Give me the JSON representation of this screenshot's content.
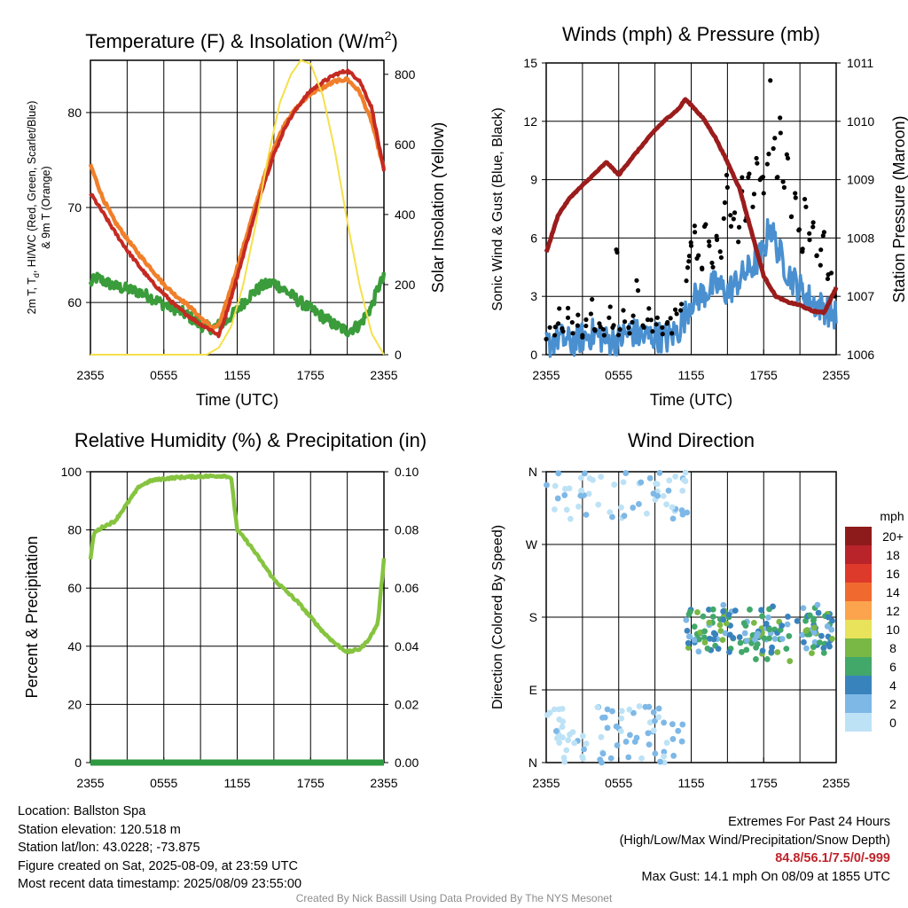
{
  "chart_data": [
    {
      "id": "temp",
      "type": "line",
      "title": "Temperature (F) & Insolation (W/m",
      "title_sup": "2",
      "title_close": ")",
      "xlabel": "Time (UTC)",
      "ylabel_left": [
        "2m T, T",
        "d",
        ", HI/WC (Red, Green, Scarlet/Blue)",
        "& 9m T (Orange)"
      ],
      "ylabel_right": "Solar Insolation (Yellow)",
      "x_ticks": [
        "2355",
        "0555",
        "1155",
        "1755",
        "2355"
      ],
      "ylim": [
        54.5,
        85.5
      ],
      "y_ticks": [
        60,
        70,
        80
      ],
      "y2lim": [
        0,
        840
      ],
      "y2_ticks": [
        0,
        200,
        400,
        600,
        800
      ],
      "grid": true,
      "series": [
        {
          "color": "#3a9c3a",
          "axis": "left",
          "points": [
            [
              0,
              62
            ],
            [
              0.5,
              62.6
            ],
            [
              1,
              62.3
            ],
            [
              2,
              61.7
            ],
            [
              3,
              61.4
            ],
            [
              4,
              61.1
            ],
            [
              5,
              60.5
            ],
            [
              6,
              59.8
            ],
            [
              7,
              59.3
            ],
            [
              8,
              58.6
            ],
            [
              9,
              57.6
            ],
            [
              10,
              57.3
            ],
            [
              11,
              57.9
            ],
            [
              12,
              59.2
            ],
            [
              13,
              60.7
            ],
            [
              14,
              61.7
            ],
            [
              15,
              62.1
            ],
            [
              16,
              61.2
            ],
            [
              17,
              60.2
            ],
            [
              18,
              59.3
            ],
            [
              19,
              58.5
            ],
            [
              20,
              57.6
            ],
            [
              21,
              57
            ],
            [
              22,
              57.6
            ],
            [
              23,
              59.6
            ],
            [
              23.5,
              61.5
            ],
            [
              24,
              62.6
            ]
          ]
        },
        {
          "color": "#f07f2b",
          "axis": "left",
          "points": [
            [
              0,
              74.5
            ],
            [
              1,
              71
            ],
            [
              2,
              68.5
            ],
            [
              3,
              66.7
            ],
            [
              4,
              65
            ],
            [
              5,
              63.5
            ],
            [
              6,
              61.9
            ],
            [
              7,
              60.7
            ],
            [
              8,
              59.7
            ],
            [
              9,
              58.4
            ],
            [
              10,
              57.3
            ],
            [
              10.5,
              57.6
            ],
            [
              11,
              59.5
            ],
            [
              12,
              63.7
            ],
            [
              13,
              68
            ],
            [
              14,
              72.4
            ],
            [
              15,
              76.3
            ],
            [
              16,
              79.1
            ],
            [
              17,
              80.7
            ],
            [
              18,
              82
            ],
            [
              19,
              82.6
            ],
            [
              20,
              83.3
            ],
            [
              21,
              83.5
            ],
            [
              22,
              82.2
            ],
            [
              23,
              79
            ],
            [
              24,
              74
            ]
          ]
        },
        {
          "color": "#c42a22",
          "axis": "left",
          "points": [
            [
              0,
              71.5
            ],
            [
              1,
              69.5
            ],
            [
              2,
              67.4
            ],
            [
              3,
              65.5
            ],
            [
              4,
              63.8
            ],
            [
              5,
              62.2
            ],
            [
              6,
              60.9
            ],
            [
              7,
              59.6
            ],
            [
              8,
              58.6
            ],
            [
              9,
              57.7
            ],
            [
              10,
              57
            ],
            [
              10.5,
              56.5
            ],
            [
              11,
              58.4
            ],
            [
              12,
              62.7
            ],
            [
              13,
              67.3
            ],
            [
              14,
              71.8
            ],
            [
              15,
              75.6
            ],
            [
              16,
              78.7
            ],
            [
              17,
              80.7
            ],
            [
              18,
              82.3
            ],
            [
              19,
              83.2
            ],
            [
              20,
              84
            ],
            [
              21,
              84.4
            ],
            [
              22,
              83.4
            ],
            [
              23,
              80.5
            ],
            [
              24,
              73.8
            ]
          ]
        },
        {
          "color": "#f5e04a",
          "axis": "right",
          "points": [
            [
              0,
              0
            ],
            [
              9.5,
              0
            ],
            [
              10.5,
              20
            ],
            [
              11.5,
              80
            ],
            [
              12.5,
              200
            ],
            [
              13.5,
              370
            ],
            [
              14.5,
              560
            ],
            [
              15.5,
              720
            ],
            [
              16.4,
              800
            ],
            [
              17.2,
              840
            ],
            [
              18,
              830
            ],
            [
              19,
              740
            ],
            [
              20,
              580
            ],
            [
              21,
              380
            ],
            [
              22,
              200
            ],
            [
              23,
              60
            ],
            [
              24,
              0
            ]
          ]
        }
      ]
    },
    {
      "id": "winds",
      "type": "line",
      "title": "Winds (mph) & Pressure (mb)",
      "xlabel": "Time (UTC)",
      "ylabel_left": "Sonic Wind & Gust (Blue, Black)",
      "ylabel_right": "Station Pressure (Maroon)",
      "x_ticks": [
        "2355",
        "0555",
        "1155",
        "1755",
        "2355"
      ],
      "ylim": [
        0,
        15
      ],
      "y_ticks": [
        0,
        3,
        6,
        9,
        12,
        15
      ],
      "y2lim": [
        1006,
        1011
      ],
      "y2_ticks": [
        1006,
        1007,
        1008,
        1009,
        1010,
        1011
      ],
      "grid": true,
      "series": [
        {
          "color": "#4a90d0",
          "axis": "left",
          "points": [
            [
              0,
              0.5
            ],
            [
              1,
              0.9
            ],
            [
              2,
              0.6
            ],
            [
              3,
              0.9
            ],
            [
              4,
              1.1
            ],
            [
              5,
              0.7
            ],
            [
              6,
              0.8
            ],
            [
              7,
              1.2
            ],
            [
              8,
              0.9
            ],
            [
              9,
              1.0
            ],
            [
              10,
              0.8
            ],
            [
              11,
              1.3
            ],
            [
              11.5,
              2
            ],
            [
              12,
              2.8
            ],
            [
              13,
              3.1
            ],
            [
              14,
              3.6
            ],
            [
              15,
              3.2
            ],
            [
              16,
              3.9
            ],
            [
              17,
              4.5
            ],
            [
              18,
              5.3
            ],
            [
              18.5,
              6.7
            ],
            [
              19,
              5.7
            ],
            [
              20,
              4.2
            ],
            [
              21,
              3.4
            ],
            [
              22,
              2.7
            ],
            [
              23,
              2.4
            ],
            [
              24,
              2.0
            ]
          ]
        },
        {
          "color": "#9b1c1c",
          "axis": "right",
          "points": [
            [
              0,
              1007.75
            ],
            [
              1,
              1008.4
            ],
            [
              2,
              1008.7
            ],
            [
              3,
              1008.9
            ],
            [
              4,
              1009.1
            ],
            [
              5,
              1009.3
            ],
            [
              6,
              1009.08
            ],
            [
              7,
              1009.35
            ],
            [
              8,
              1009.6
            ],
            [
              9,
              1009.85
            ],
            [
              10,
              1010.05
            ],
            [
              11,
              1010.22
            ],
            [
              11.5,
              1010.38
            ],
            [
              12,
              1010.28
            ],
            [
              13,
              1010.05
            ],
            [
              14,
              1009.72
            ],
            [
              15,
              1009.3
            ],
            [
              16,
              1008.85
            ],
            [
              17,
              1008.1
            ],
            [
              18,
              1007.35
            ],
            [
              19,
              1007.0
            ],
            [
              20,
              1006.9
            ],
            [
              21,
              1006.85
            ],
            [
              22,
              1006.75
            ],
            [
              23,
              1006.72
            ],
            [
              24,
              1007.15
            ]
          ]
        }
      ],
      "gusts": [
        [
          0,
          0.8
        ],
        [
          0.3,
          1.4
        ],
        [
          0.7,
          1.0
        ],
        [
          1,
          1.6
        ],
        [
          1.4,
          1.2
        ],
        [
          1.8,
          1.9
        ],
        [
          2.2,
          1.1
        ],
        [
          2.6,
          1.5
        ],
        [
          3,
          1.0
        ],
        [
          3.3,
          1.8
        ],
        [
          3.7,
          2.1
        ],
        [
          4,
          1.3
        ],
        [
          4.4,
          1.6
        ],
        [
          4.8,
          1.0
        ],
        [
          5.2,
          1.9
        ],
        [
          5.5,
          1.4
        ],
        [
          5.8,
          5.4
        ],
        [
          6.1,
          1.3
        ],
        [
          6.5,
          1.7
        ],
        [
          6.9,
          1.1
        ],
        [
          7.2,
          2.0
        ],
        [
          7.6,
          3.3
        ],
        [
          8,
          1.5
        ],
        [
          8.4,
          1.8
        ],
        [
          8.8,
          1.2
        ],
        [
          9.2,
          1.9
        ],
        [
          9.6,
          1.4
        ],
        [
          10,
          1.6
        ],
        [
          10.4,
          1.1
        ],
        [
          10.8,
          2.1
        ],
        [
          11.2,
          2.6
        ],
        [
          11.6,
          3.8
        ],
        [
          11.8,
          4.8
        ],
        [
          12,
          5.6
        ],
        [
          12.3,
          6.3
        ],
        [
          12.6,
          5.1
        ],
        [
          12.9,
          4.4
        ],
        [
          13.2,
          6.7
        ],
        [
          13.5,
          5.6
        ],
        [
          13.8,
          4.5
        ],
        [
          14.1,
          6.1
        ],
        [
          14.4,
          5.3
        ],
        [
          14.7,
          7.0
        ],
        [
          15,
          8.6
        ],
        [
          15.3,
          6.6
        ],
        [
          15.6,
          7.3
        ],
        [
          15.9,
          5.8
        ],
        [
          16.2,
          8.4
        ],
        [
          16.5,
          6.9
        ],
        [
          16.8,
          9.3
        ],
        [
          17.1,
          7.6
        ],
        [
          17.4,
          10.1
        ],
        [
          17.7,
          9.0
        ],
        [
          18,
          8.3
        ],
        [
          18.3,
          9.8
        ],
        [
          18.55,
          14.1
        ],
        [
          18.8,
          10.6
        ],
        [
          19.1,
          9.1
        ],
        [
          19.4,
          11.4
        ],
        [
          19.7,
          8.6
        ],
        [
          20,
          10.1
        ],
        [
          20.3,
          7.1
        ],
        [
          20.6,
          8.3
        ],
        [
          20.9,
          6.4
        ],
        [
          21.2,
          5.3
        ],
        [
          21.5,
          7.6
        ],
        [
          21.8,
          5.9
        ],
        [
          22.1,
          6.8
        ],
        [
          22.4,
          5.1
        ],
        [
          22.7,
          4.6
        ],
        [
          23,
          6.3
        ],
        [
          23.3,
          3.9
        ],
        [
          23.6,
          4.2
        ],
        [
          23.9,
          3.0
        ]
      ]
    },
    {
      "id": "rh",
      "type": "line",
      "title": "Relative Humidity (%) & Precipitation (in)",
      "ylabel_left": "Percent & Precipitation",
      "x_ticks": [
        "2355",
        "0555",
        "1155",
        "1755",
        "2355"
      ],
      "ylim": [
        0,
        100
      ],
      "y_ticks": [
        0,
        20,
        40,
        60,
        80,
        100
      ],
      "y2lim": [
        0,
        0.1
      ],
      "y2_ticks": [
        "0.00",
        "0.02",
        "0.04",
        "0.06",
        "0.08",
        "0.10"
      ],
      "grid": true,
      "series": [
        {
          "color": "#86c440",
          "axis": "left",
          "points": [
            [
              0,
              70
            ],
            [
              0.3,
              79
            ],
            [
              1,
              81
            ],
            [
              2,
              83
            ],
            [
              3,
              89
            ],
            [
              4,
              95
            ],
            [
              5,
              97
            ],
            [
              6,
              97.6
            ],
            [
              7,
              98
            ],
            [
              8,
              98.2
            ],
            [
              9,
              98.4
            ],
            [
              10,
              98.5
            ],
            [
              11,
              98.6
            ],
            [
              11.5,
              98
            ],
            [
              12,
              80
            ],
            [
              13,
              75
            ],
            [
              14,
              69
            ],
            [
              15,
              63
            ],
            [
              16,
              59
            ],
            [
              17,
              55
            ],
            [
              18,
              50
            ],
            [
              19,
              45
            ],
            [
              20,
              41
            ],
            [
              21,
              38
            ],
            [
              22,
              39
            ],
            [
              22.5,
              41
            ],
            [
              23,
              44
            ],
            [
              23.5,
              48
            ],
            [
              24,
              70
            ]
          ]
        },
        {
          "color": "#2f9a40",
          "axis": "right",
          "points": [
            [
              0,
              0
            ],
            [
              24,
              0
            ]
          ]
        }
      ]
    },
    {
      "id": "wdir",
      "type": "scatter",
      "title": "Wind Direction",
      "ylabel_left": "Direction (Colored By Speed)",
      "x_ticks": [
        "2355",
        "0555",
        "1155",
        "1755",
        "2355"
      ],
      "y_ticks": [
        "N",
        "E",
        "S",
        "W",
        "N"
      ],
      "ylim": [
        0,
        360
      ],
      "grid": true,
      "legend_title": "mph",
      "legend_labels": [
        "20+",
        "18",
        "16",
        "14",
        "12",
        "10",
        "8",
        "6",
        "4",
        "2",
        "0"
      ],
      "legend_colors": [
        "#8e1b1b",
        "#b8242a",
        "#de3a2c",
        "#f06a30",
        "#fba44d",
        "#e8e35a",
        "#79b845",
        "#41a86a",
        "#3983bd",
        "#7eb8e6",
        "#bde2f6"
      ]
    }
  ],
  "info_left": [
    "Location: Ballston Spa",
    "Station elevation: 120.518 m",
    "Station lat/lon: 43.0228; -73.875",
    "Figure created on Sat, 2025-08-09, at 23:59 UTC",
    "Most recent data timestamp: 2025/08/09 23:55:00"
  ],
  "extremes": {
    "title": "Extremes For Past 24 Hours",
    "subtitle": "(High/Low/Max Wind/Precipitation/Snow Depth)",
    "values": "84.8/56.1/7.5/0/-999",
    "max_gust": "Max Gust: 14.1 mph On 08/09 at 1855 UTC"
  },
  "credit": "Created By Nick Bassill Using Data Provided By The NYS Mesonet"
}
